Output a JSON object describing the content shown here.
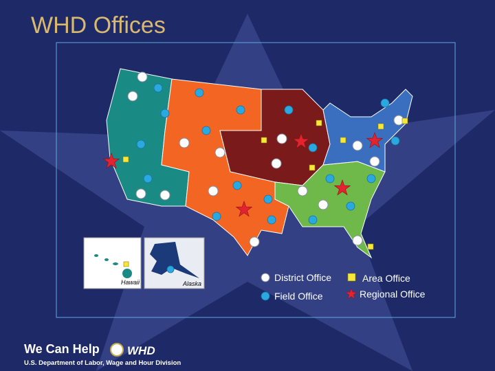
{
  "header": {
    "title": "WHD Offices"
  },
  "insets": {
    "hawaii": "Hawaii",
    "alaska": "Alaska"
  },
  "legend": [
    {
      "label": "District Office"
    },
    {
      "label": "Area Office"
    },
    {
      "label": "Field Office"
    },
    {
      "label": "Regional Office"
    }
  ],
  "footer": {
    "tagline": "We Can Help",
    "logo": "WHD",
    "department": "U.S. Department of Labor, Wage and Hour Division"
  }
}
